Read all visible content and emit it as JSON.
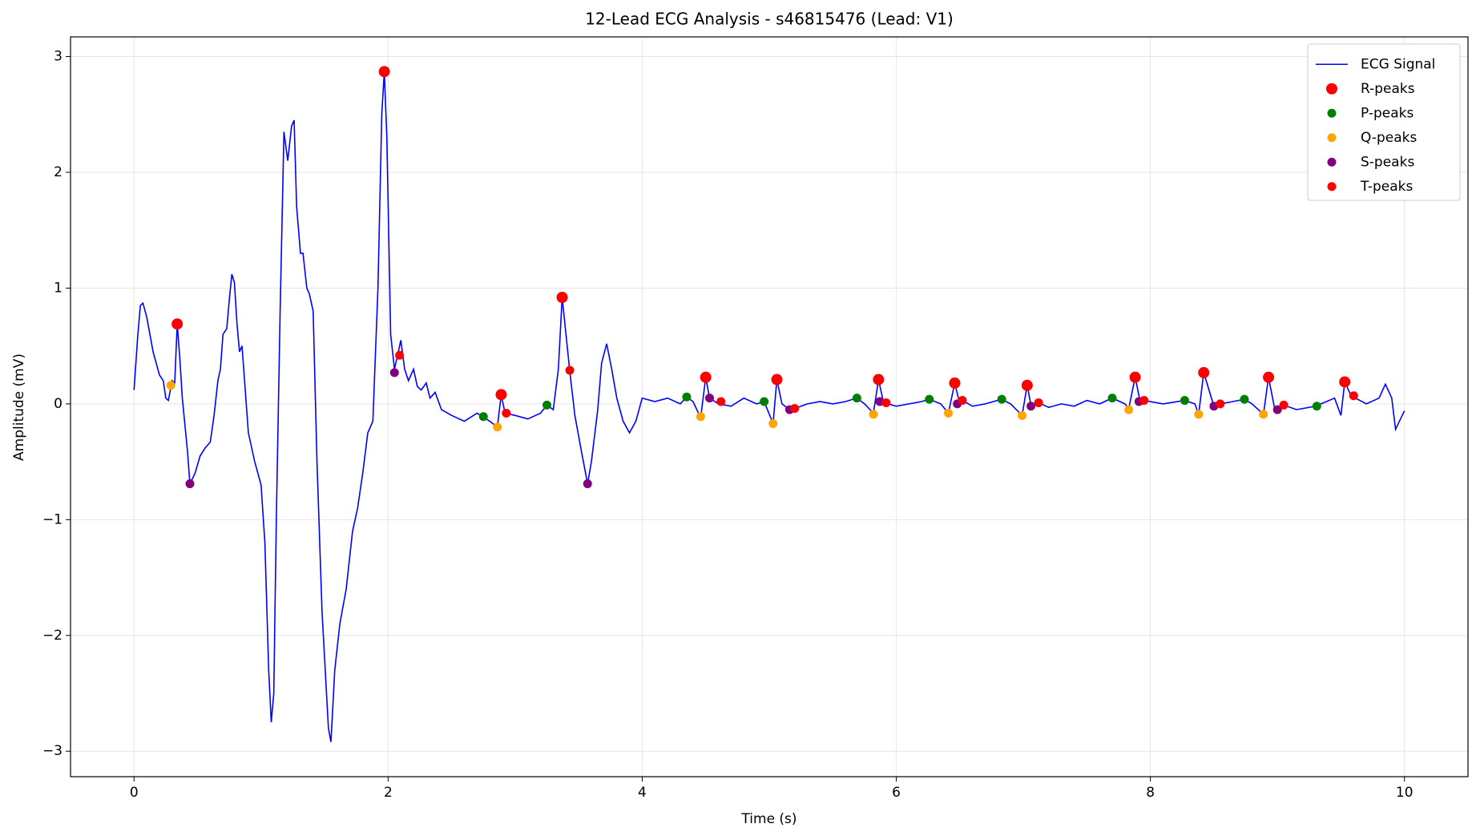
{
  "chart_data": {
    "type": "line",
    "title": "12-Lead ECG Analysis - s46815476 (Lead: V1)",
    "x_label": "Time (s)",
    "y_label": "Amplitude (mV)",
    "xlim": [
      -0.5,
      10.5
    ],
    "ylim": [
      -3.22,
      3.17
    ],
    "xticks": [
      0,
      2,
      4,
      6,
      8,
      10
    ],
    "yticks": [
      {
        "value": -3,
        "label": "−3"
      },
      {
        "value": -2,
        "label": "−2"
      },
      {
        "value": -1,
        "label": "−1"
      },
      0,
      1,
      2,
      3
    ],
    "grid": true,
    "legend": "upper right",
    "series": [
      {
        "name": "ECG Signal",
        "color": "#0000ff",
        "style": "line",
        "x": [
          0,
          0.03,
          0.05,
          0.07,
          0.1,
          0.15,
          0.2,
          0.23,
          0.25,
          0.27,
          0.3,
          0.32,
          0.34,
          0.36,
          0.38,
          0.42,
          0.44,
          0.48,
          0.52,
          0.56,
          0.6,
          0.63,
          0.66,
          0.68,
          0.7,
          0.73,
          0.75,
          0.77,
          0.79,
          0.81,
          0.83,
          0.85,
          0.87,
          0.9,
          0.95,
          1.0,
          1.03,
          1.06,
          1.08,
          1.1,
          1.12,
          1.15,
          1.18,
          1.21,
          1.24,
          1.26,
          1.28,
          1.31,
          1.33,
          1.36,
          1.38,
          1.41,
          1.44,
          1.48,
          1.53,
          1.55,
          1.58,
          1.62,
          1.67,
          1.72,
          1.76,
          1.8,
          1.84,
          1.88,
          1.92,
          1.95,
          1.97,
          1.99,
          2.02,
          2.05,
          2.08,
          2.1,
          2.13,
          2.16,
          2.2,
          2.23,
          2.26,
          2.3,
          2.33,
          2.37,
          2.42,
          2.5,
          2.6,
          2.7,
          2.8,
          2.86,
          2.89,
          2.92,
          3.0,
          3.1,
          3.2,
          3.25,
          3.3,
          3.34,
          3.37,
          3.4,
          3.43,
          3.47,
          3.52,
          3.57,
          3.6,
          3.65,
          3.68,
          3.72,
          3.76,
          3.8,
          3.85,
          3.9,
          3.95,
          4.0,
          4.1,
          4.2,
          4.3,
          4.35,
          4.4,
          4.46,
          4.5,
          4.53,
          4.6,
          4.7,
          4.8,
          4.9,
          4.96,
          5.03,
          5.06,
          5.1,
          5.16,
          5.2,
          5.3,
          5.4,
          5.5,
          5.6,
          5.69,
          5.75,
          5.82,
          5.86,
          5.9,
          6.0,
          6.1,
          6.2,
          6.26,
          6.35,
          6.41,
          6.46,
          6.5,
          6.52,
          6.6,
          6.7,
          6.83,
          6.9,
          6.99,
          7.03,
          7.06,
          7.12,
          7.2,
          7.3,
          7.4,
          7.5,
          7.6,
          7.7,
          7.8,
          7.83,
          7.88,
          7.92,
          7.95,
          8.1,
          8.27,
          8.35,
          8.38,
          8.42,
          8.5,
          8.55,
          8.65,
          8.74,
          8.8,
          8.89,
          8.93,
          8.98,
          9.05,
          9.15,
          9.3,
          9.45,
          9.5,
          9.53,
          9.58,
          9.7,
          9.8,
          9.85,
          9.9,
          9.93,
          9.96,
          10.0
        ],
        "values": [
          0.12,
          0.6,
          0.85,
          0.87,
          0.75,
          0.45,
          0.25,
          0.2,
          0.05,
          0.03,
          0.2,
          0.18,
          0.69,
          0.4,
          0.05,
          -0.4,
          -0.69,
          -0.6,
          -0.45,
          -0.38,
          -0.33,
          -0.1,
          0.2,
          0.3,
          0.6,
          0.65,
          0.9,
          1.12,
          1.05,
          0.7,
          0.45,
          0.5,
          0.2,
          -0.25,
          -0.5,
          -0.7,
          -1.2,
          -2.3,
          -2.75,
          -2.5,
          -1.0,
          0.8,
          2.35,
          2.1,
          2.4,
          2.45,
          1.7,
          1.3,
          1.3,
          1.0,
          0.95,
          0.8,
          -0.5,
          -1.8,
          -2.8,
          -2.92,
          -2.3,
          -1.9,
          -1.6,
          -1.1,
          -0.9,
          -0.6,
          -0.25,
          -0.15,
          1.0,
          2.5,
          2.87,
          2.3,
          0.6,
          0.3,
          0.45,
          0.55,
          0.3,
          0.2,
          0.3,
          0.15,
          0.12,
          0.18,
          0.05,
          0.1,
          -0.05,
          -0.1,
          -0.15,
          -0.08,
          -0.15,
          -0.2,
          0.08,
          -0.08,
          -0.1,
          -0.13,
          -0.08,
          -0.01,
          -0.05,
          0.3,
          0.92,
          0.6,
          0.28,
          -0.1,
          -0.4,
          -0.69,
          -0.5,
          -0.05,
          0.35,
          0.52,
          0.3,
          0.05,
          -0.15,
          -0.25,
          -0.15,
          0.05,
          0.02,
          0.05,
          0.0,
          0.06,
          0.02,
          -0.12,
          0.23,
          0.05,
          0.0,
          -0.02,
          0.05,
          0.0,
          0.02,
          -0.17,
          0.21,
          0.0,
          -0.05,
          -0.04,
          0.0,
          0.02,
          0.0,
          0.02,
          0.05,
          0.0,
          -0.08,
          0.21,
          0.01,
          -0.02,
          0.0,
          0.02,
          0.04,
          0.0,
          -0.08,
          0.18,
          0.0,
          0.03,
          -0.02,
          0.0,
          0.04,
          0.0,
          -0.1,
          0.16,
          -0.01,
          0.01,
          -0.03,
          0.0,
          -0.02,
          0.03,
          0.0,
          0.05,
          0.0,
          -0.04,
          0.23,
          0.02,
          0.03,
          0.0,
          0.03,
          0.0,
          -0.09,
          0.27,
          -0.02,
          0.0,
          0.02,
          0.04,
          0.0,
          -0.09,
          0.23,
          -0.05,
          -0.01,
          -0.05,
          -0.02,
          0.05,
          -0.1,
          0.19,
          0.07,
          0.0,
          0.05,
          0.17,
          0.05,
          -0.22,
          -0.15,
          -0.06
        ]
      },
      {
        "name": "R-peaks",
        "color": "#ff0000",
        "style": "marker",
        "size": 7,
        "x": [
          0.34,
          1.97,
          2.89,
          3.37,
          4.5,
          5.06,
          5.86,
          6.46,
          7.03,
          7.88,
          8.42,
          8.93,
          9.53
        ],
        "values": [
          0.69,
          2.87,
          0.08,
          0.92,
          0.23,
          0.21,
          0.21,
          0.18,
          0.16,
          0.23,
          0.27,
          0.23,
          0.19
        ]
      },
      {
        "name": "P-peaks",
        "color": "#008000",
        "style": "marker",
        "size": 5.5,
        "x": [
          2.75,
          3.25,
          4.35,
          4.96,
          5.69,
          6.26,
          6.83,
          7.7,
          8.27,
          8.74,
          9.31
        ],
        "values": [
          -0.11,
          -0.01,
          0.06,
          0.02,
          0.05,
          0.04,
          0.04,
          0.05,
          0.03,
          0.04,
          -0.02
        ]
      },
      {
        "name": "Q-peaks",
        "color": "#ffa500",
        "style": "marker",
        "size": 5.5,
        "x": [
          0.29,
          2.86,
          4.46,
          5.03,
          5.82,
          6.41,
          6.99,
          7.83,
          8.38,
          8.89
        ],
        "values": [
          0.16,
          -0.2,
          -0.11,
          -0.17,
          -0.09,
          -0.08,
          -0.1,
          -0.05,
          -0.09,
          -0.09
        ]
      },
      {
        "name": "S-peaks",
        "color": "#800080",
        "style": "marker",
        "size": 5.5,
        "x": [
          0.44,
          2.05,
          3.57,
          4.53,
          5.16,
          5.87,
          6.48,
          7.06,
          7.91,
          8.5,
          9.0
        ],
        "values": [
          -0.69,
          0.27,
          -0.69,
          0.05,
          -0.05,
          0.02,
          0.0,
          -0.02,
          0.02,
          -0.02,
          -0.05
        ]
      },
      {
        "name": "T-peaks",
        "color": "#ff0000",
        "style": "marker",
        "size": 5.5,
        "x": [
          2.09,
          2.93,
          3.43,
          4.62,
          5.2,
          5.92,
          6.52,
          7.12,
          7.95,
          8.55,
          9.05,
          9.6
        ],
        "values": [
          0.42,
          -0.08,
          0.29,
          0.02,
          -0.04,
          0.01,
          0.03,
          0.01,
          0.03,
          0.0,
          -0.01,
          0.07
        ]
      }
    ]
  }
}
